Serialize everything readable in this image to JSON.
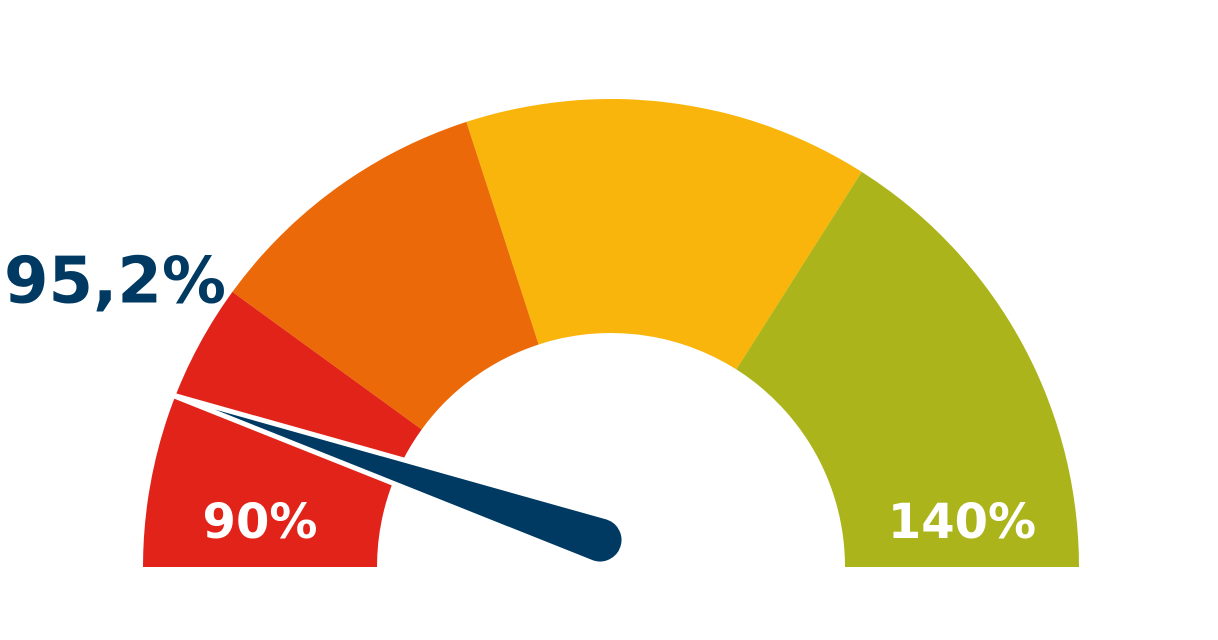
{
  "chart_data": {
    "type": "gauge",
    "value": 95.2,
    "value_label": "95,2%",
    "ylim": [
      90,
      140
    ],
    "yticks": [
      {
        "value": 90,
        "label": "90%"
      },
      {
        "value": 140,
        "label": "140%"
      }
    ],
    "bands": [
      {
        "from": 90,
        "to": 100,
        "color": "#e2231a"
      },
      {
        "from": 100,
        "to": 110,
        "color": "#eb6909"
      },
      {
        "from": 110,
        "to": 124,
        "color": "#f9b50b"
      },
      {
        "from": 124,
        "to": 140,
        "color": "#abb51b"
      }
    ],
    "needle_color": "#003a63"
  }
}
